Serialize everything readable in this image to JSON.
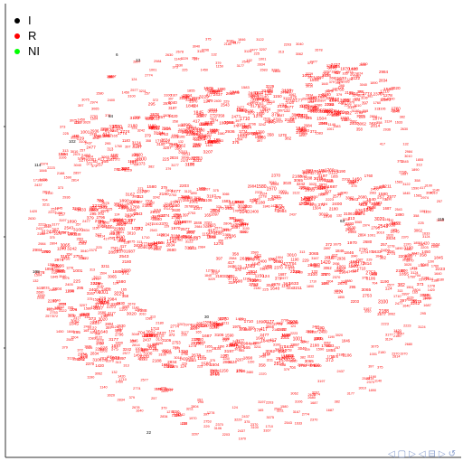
{
  "chart_data": {
    "type": "scatter",
    "title": "",
    "xlabel": "",
    "ylabel": "",
    "grid": false,
    "legend_position": "top-left",
    "legend": [
      {
        "label": "I",
        "color": "#000000"
      },
      {
        "label": "R",
        "color": "#ff0000"
      },
      {
        "label": "NI",
        "color": "#00ff00"
      }
    ],
    "series": [
      {
        "name": "I",
        "color": "#000000",
        "labels": [
          "13",
          "84",
          "102",
          "114",
          "108",
          "30",
          "22",
          "6",
          "63",
          "115"
        ]
      },
      {
        "name": "NI",
        "color": "#00ff00",
        "labels": []
      },
      {
        "name": "R",
        "color": "#ff0000",
        "labels": [
          "124",
          "165",
          "382",
          "2796",
          "2897",
          "2814",
          "2834",
          "3207",
          "2936",
          "2774",
          "2753",
          "3100",
          "313",
          "2678",
          "373",
          "3062",
          "3211",
          "3124",
          "225",
          "295",
          "3167",
          "3177",
          "417",
          "257",
          "397",
          "3197",
          "379",
          "132",
          "3242",
          "3106",
          "229",
          "3229",
          "358",
          "375",
          "1001",
          "1150",
          "704",
          "1140",
          "1278",
          "3122",
          "372",
          "3040",
          "2804",
          "3020",
          "2543",
          "2203",
          "2370",
          "1687",
          "1845",
          "2437",
          "1450",
          "2577",
          "2477",
          "2974",
          "2984",
          "2188",
          "3075",
          "3065",
          "2223",
          "1633",
          "1504",
          "1583",
          "2680",
          "2400",
          "1420",
          "2630",
          "1190",
          "1590",
          "1846",
          "1580",
          "1710",
          "1890",
          "1640",
          "2180",
          "2370",
          "1760",
          "1855",
          "1970",
          "3010"
        ]
      }
    ],
    "annotations": []
  },
  "nav": {
    "icons": [
      "◁",
      "▢",
      "▷",
      "◁",
      "⊟",
      "▷",
      "↺"
    ]
  }
}
